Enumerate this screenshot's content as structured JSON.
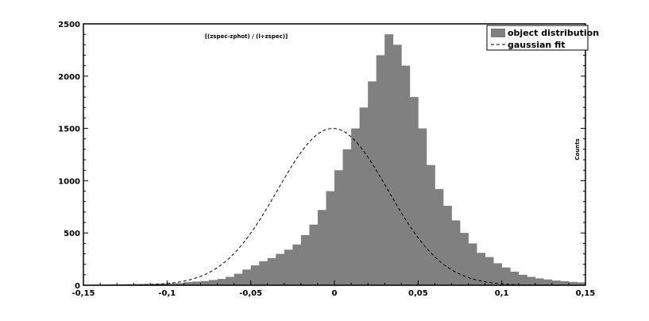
{
  "chart_data": {
    "type": "bar",
    "title": "[(zspec-zphot) / (l+zspec)]",
    "xlabel": "",
    "ylabel": "Counts",
    "xlim": [
      -0.15,
      0.15
    ],
    "ylim": [
      0,
      2500
    ],
    "x_ticks": [
      "-0,15",
      "-0,1",
      "-0,05",
      "0",
      "0,05",
      "0,1",
      "0,15"
    ],
    "x_tick_values": [
      -0.15,
      -0.1,
      -0.05,
      0,
      0.05,
      0.1,
      0.15
    ],
    "y_ticks": [
      "0",
      "500",
      "1000",
      "1500",
      "2000",
      "2500"
    ],
    "y_tick_values": [
      0,
      500,
      1000,
      1500,
      2000,
      2500
    ],
    "grid": false,
    "legend_position": "top-right",
    "bin_width": 0.005,
    "bin_start": -0.15,
    "series": [
      {
        "name": "object distribution",
        "kind": "histogram",
        "color": "#808080",
        "values": [
          5,
          6,
          7,
          8,
          9,
          10,
          12,
          13,
          14,
          16,
          18,
          20,
          30,
          35,
          40,
          50,
          60,
          80,
          110,
          150,
          190,
          230,
          260,
          300,
          340,
          390,
          480,
          580,
          720,
          900,
          1100,
          1300,
          1500,
          1700,
          1950,
          2200,
          2400,
          2300,
          2100,
          1800,
          1500,
          1150,
          920,
          760,
          620,
          500,
          400,
          310,
          270,
          210,
          170,
          130,
          100,
          80,
          65,
          55,
          45,
          38,
          32,
          28
        ]
      },
      {
        "name": "gaussian fit",
        "kind": "line",
        "style": "dashed",
        "color": "#000000",
        "amplitude": 1500,
        "mean": -0.001,
        "sigma": 0.033
      }
    ]
  }
}
